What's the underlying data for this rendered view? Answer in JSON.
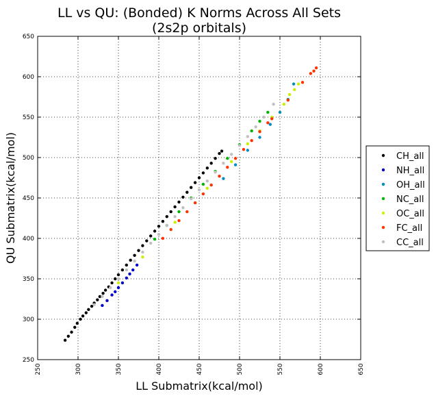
{
  "chart_data": {
    "type": "scatter",
    "title_lines": [
      "LL vs QU: (Bonded) K Norms Across All Sets",
      "(2s2p orbitals)"
    ],
    "xlabel": "LL Submatrix(kcal/mol)",
    "ylabel": "QU Submatrix(kcal/mol)",
    "xlim": [
      250,
      650
    ],
    "ylim": [
      250,
      650
    ],
    "xticks": [
      250,
      300,
      350,
      400,
      450,
      500,
      550,
      600,
      650
    ],
    "yticks": [
      250,
      300,
      350,
      400,
      450,
      500,
      550,
      600,
      650
    ],
    "x_tick_rotation": -90,
    "grid": true,
    "legend_position": "outside-right",
    "series": [
      {
        "name": "CH_all",
        "color": "#000000",
        "x": [
          284,
          288,
          292,
          296,
          299,
          303,
          306,
          310,
          313,
          317,
          320,
          324,
          327,
          331,
          334,
          338,
          342,
          346,
          350,
          355,
          360,
          365,
          370,
          375,
          380,
          385,
          390,
          395,
          400,
          405,
          410,
          415,
          420,
          425,
          430,
          435,
          440,
          445,
          450,
          455,
          460,
          465,
          470,
          475,
          478
        ],
        "y": [
          274,
          279,
          284,
          290,
          295,
          300,
          304,
          308,
          312,
          316,
          320,
          324,
          328,
          332,
          336,
          340,
          345,
          350,
          355,
          361,
          367,
          373,
          379,
          385,
          391,
          397,
          403,
          409,
          415,
          421,
          427,
          433,
          439,
          445,
          451,
          457,
          463,
          469,
          475,
          481,
          487,
          493,
          499,
          505,
          508
        ]
      },
      {
        "name": "NH_all",
        "color": "#0000c8",
        "x": [
          330,
          336,
          342,
          346,
          350,
          355,
          360,
          364,
          368,
          373
        ],
        "y": [
          317,
          323,
          330,
          334,
          339,
          345,
          351,
          356,
          361,
          367
        ]
      },
      {
        "name": "OH_all",
        "color": "#008cbf",
        "x": [
          480,
          495,
          510,
          525,
          538,
          550,
          560,
          567
        ],
        "y": [
          474,
          491,
          509,
          525,
          541,
          556,
          572,
          591
        ]
      },
      {
        "name": "NC_all",
        "color": "#00b400",
        "x": [
          395,
          410,
          425,
          440,
          455,
          470,
          485,
          500,
          515,
          525,
          535
        ],
        "y": [
          399,
          416,
          433,
          450,
          467,
          483,
          499,
          516,
          533,
          545,
          556
        ]
      },
      {
        "name": "OC_all",
        "color": "#c8f000",
        "x": [
          350,
          380,
          420,
          460,
          490,
          510,
          525,
          540,
          555,
          562,
          568,
          573
        ],
        "y": [
          345,
          377,
          420,
          462,
          495,
          517,
          533,
          550,
          566,
          578,
          584,
          591
        ]
      },
      {
        "name": "FC_all",
        "color": "#ff3200",
        "x": [
          405,
          415,
          425,
          435,
          445,
          455,
          465,
          475,
          485,
          495,
          505,
          515,
          525,
          535,
          540,
          560,
          578,
          588,
          592,
          595
        ],
        "y": [
          400,
          411,
          422,
          433,
          444,
          455,
          466,
          477,
          488,
          499,
          510,
          521,
          532,
          543,
          548,
          571,
          593,
          604,
          607,
          611
        ]
      },
      {
        "name": "CC_all",
        "color": "#c0c0c0",
        "x": [
          320,
          330,
          340,
          350,
          360,
          370,
          380,
          390,
          400,
          410,
          420,
          430,
          440,
          450,
          460,
          470,
          480,
          490,
          500,
          510,
          520,
          530,
          542
        ],
        "y": [
          318,
          328,
          339,
          350,
          361,
          372,
          383,
          394,
          405,
          416,
          427,
          438,
          449,
          460,
          471,
          482,
          493,
          504,
          515,
          526,
          538,
          550,
          566
        ]
      }
    ]
  }
}
